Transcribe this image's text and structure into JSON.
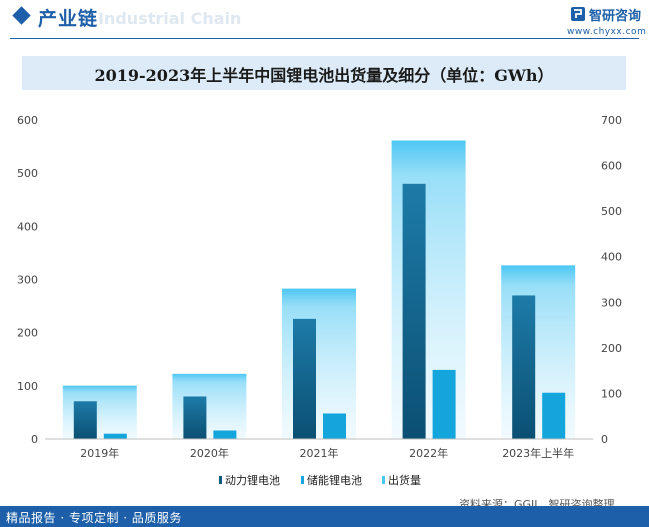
{
  "header": {
    "section_title": "产业链",
    "watermark_text": "Industrial Chain",
    "brand_name": "智研咨询",
    "brand_url": "www.chyxx.com"
  },
  "chart_title": "2019-2023年上半年中国锂电池出货量及细分（单位：GWh）",
  "chart_data": {
    "type": "bar",
    "title": "2019-2023年上半年中国锂电池出货量及细分（单位：GWh）",
    "categories": [
      "2019年",
      "2020年",
      "2021年",
      "2022年",
      "2023年上半年"
    ],
    "y_left": {
      "ticks": [
        0,
        100,
        200,
        300,
        400,
        500,
        600
      ],
      "ylim": [
        0,
        600
      ]
    },
    "y_right": {
      "ticks": [
        0,
        100,
        200,
        300,
        400,
        500,
        600,
        700
      ],
      "ylim": [
        0,
        700
      ]
    },
    "series": [
      {
        "name": "动力锂电池",
        "axis": "left",
        "values": [
          71,
          80,
          226,
          480,
          270
        ],
        "color": "#0d5a80"
      },
      {
        "name": "储能锂电池",
        "axis": "left",
        "values": [
          10,
          16,
          48,
          130,
          87
        ],
        "color": "#13a5dc"
      },
      {
        "name": "出货量",
        "axis": "right",
        "values": [
          117,
          143,
          330,
          655,
          381
        ],
        "color": "#4cc6f2"
      }
    ],
    "grid": false,
    "legend": "bottom"
  },
  "legend_items": [
    "动力锂电池",
    "储能锂电池",
    "出货量"
  ],
  "source_text": "资料来源：GGII、智研咨询整理",
  "footer_text": "精品报告 · 专项定制 · 品质服务",
  "colors": {
    "brand": "#1d5fa8",
    "title_band": "#dcebf7"
  }
}
